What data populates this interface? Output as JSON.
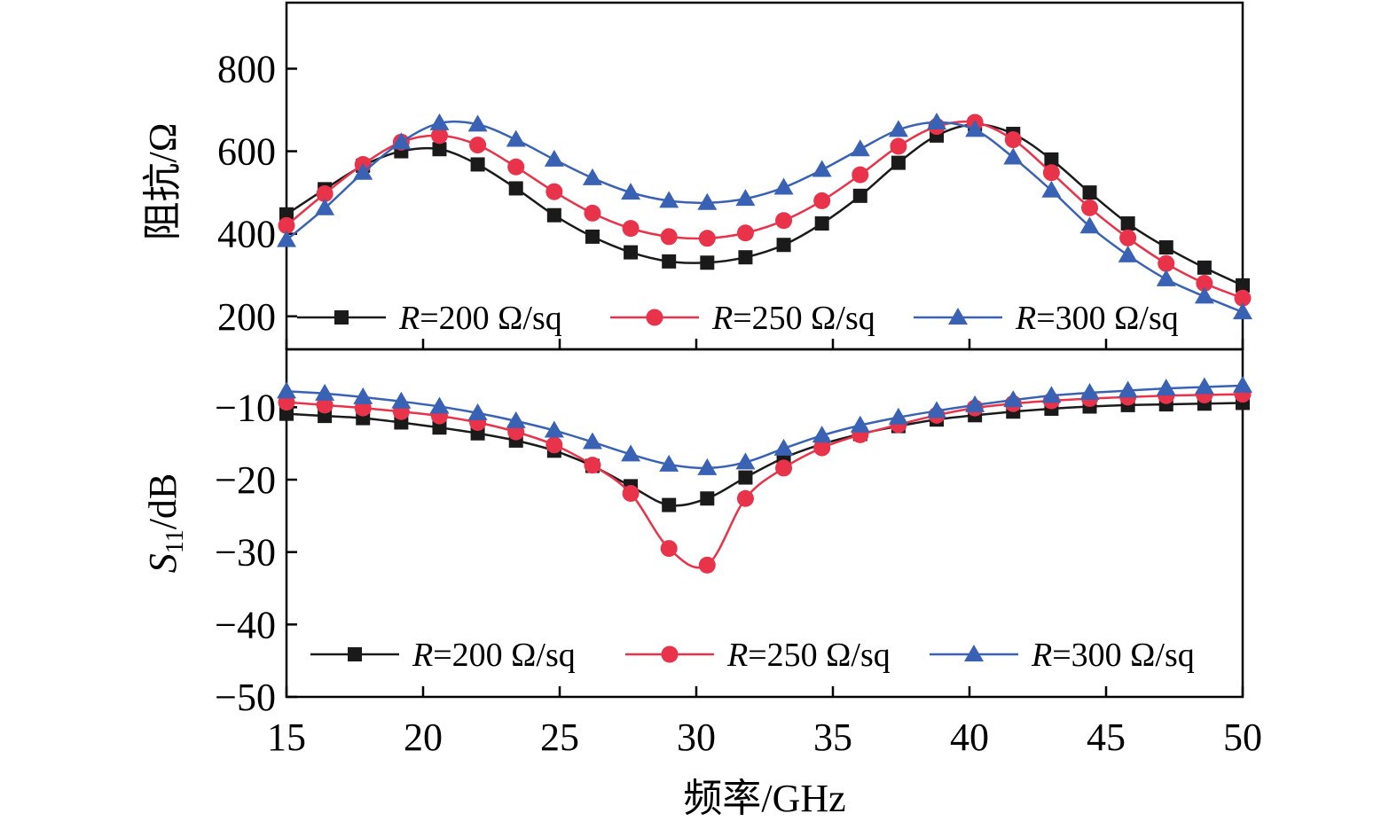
{
  "chart_data": [
    {
      "type": "line",
      "panel": "top",
      "xlabel": "频率/GHz",
      "ylabel": "阻抗/Ω",
      "xlim": [
        15,
        50
      ],
      "ylim": [
        120,
        960
      ],
      "x_ticks": [
        "15",
        "20",
        "25",
        "30",
        "35",
        "40",
        "45",
        "50"
      ],
      "y_ticks": [
        "200",
        "400",
        "600",
        "800"
      ],
      "legend_position": "bottom",
      "x": [
        15,
        16.4,
        17.8,
        19.2,
        20.6,
        22,
        23.4,
        24.8,
        26.2,
        27.6,
        29,
        30.4,
        31.8,
        33.2,
        34.6,
        36,
        37.4,
        38.8,
        40.2,
        41.6,
        43,
        44.4,
        45.8,
        47.2,
        48.6,
        50
      ],
      "series": [
        {
          "name": "R=200 Ω/sq",
          "legend_italic": "R",
          "legend_rest": "=200 Ω/sq",
          "color": "#1a1a1a",
          "marker": "square",
          "values": [
            447,
            508,
            565,
            600,
            605,
            568,
            510,
            445,
            393,
            355,
            333,
            330,
            343,
            373,
            425,
            492,
            572,
            638,
            665,
            642,
            580,
            500,
            425,
            367,
            318,
            275
          ]
        },
        {
          "name": "R=250 Ω/sq",
          "legend_italic": "R",
          "legend_rest": "=250 Ω/sq",
          "color": "#e8334a",
          "marker": "circle",
          "values": [
            420,
            497,
            568,
            622,
            638,
            615,
            562,
            502,
            450,
            413,
            393,
            389,
            402,
            432,
            480,
            543,
            612,
            660,
            670,
            628,
            548,
            463,
            390,
            328,
            280,
            244
          ]
        },
        {
          "name": "R=300 Ω/sq",
          "legend_italic": "R",
          "legend_rest": "=300 Ω/sq",
          "color": "#3a62b4",
          "marker": "triangle",
          "values": [
            385,
            462,
            548,
            622,
            668,
            665,
            628,
            580,
            535,
            500,
            480,
            475,
            485,
            512,
            555,
            605,
            652,
            670,
            652,
            585,
            505,
            418,
            348,
            290,
            248,
            210
          ]
        }
      ]
    },
    {
      "type": "line",
      "panel": "bottom",
      "xlabel": "频率/GHz",
      "ylabel_main": "S",
      "ylabel_sub": "11",
      "ylabel_tail": "/dB",
      "xlim": [
        15,
        50
      ],
      "ylim": [
        -50,
        -2
      ],
      "x_ticks": [
        "15",
        "20",
        "25",
        "30",
        "35",
        "40",
        "45",
        "50"
      ],
      "y_ticks": [
        "−10",
        "−20",
        "−30",
        "−40",
        "−50"
      ],
      "legend_position": "bottom",
      "x": [
        15,
        16.4,
        17.8,
        19.2,
        20.6,
        22,
        23.4,
        24.8,
        26.2,
        27.6,
        29,
        30.4,
        31.8,
        33.2,
        34.6,
        36,
        37.4,
        38.8,
        40.2,
        41.6,
        43,
        44.4,
        45.8,
        47.2,
        48.6,
        50
      ],
      "series": [
        {
          "name": "R=200 Ω/sq",
          "legend_italic": "R",
          "legend_rest": "=200 Ω/sq",
          "color": "#1a1a1a",
          "marker": "square",
          "values": [
            -10.9,
            -11.2,
            -11.5,
            -12.1,
            -12.8,
            -13.6,
            -14.6,
            -16.0,
            -18.1,
            -20.9,
            -23.5,
            -22.6,
            -19.7,
            -17.0,
            -15.1,
            -13.7,
            -12.6,
            -11.7,
            -11.1,
            -10.6,
            -10.2,
            -9.9,
            -9.7,
            -9.6,
            -9.5,
            -9.4
          ]
        },
        {
          "name": "R=250 Ω/sq",
          "legend_italic": "R",
          "legend_rest": "=250 Ω/sq",
          "color": "#e8334a",
          "marker": "circle",
          "values": [
            -9.3,
            -9.7,
            -10.1,
            -10.6,
            -11.2,
            -12.1,
            -13.4,
            -15.2,
            -18.0,
            -21.9,
            -29.5,
            -31.8,
            -22.6,
            -18.4,
            -15.6,
            -13.8,
            -12.4,
            -11.1,
            -10.1,
            -9.5,
            -9.1,
            -8.8,
            -8.6,
            -8.4,
            -8.3,
            -8.2
          ]
        },
        {
          "name": "R=300 Ω/sq",
          "legend_italic": "R",
          "legend_rest": "=300 Ω/sq",
          "color": "#3a62b4",
          "marker": "triangle",
          "values": [
            -7.8,
            -8.1,
            -8.6,
            -9.2,
            -9.9,
            -10.8,
            -11.9,
            -13.2,
            -14.8,
            -16.5,
            -17.9,
            -18.4,
            -17.6,
            -15.7,
            -13.9,
            -12.5,
            -11.4,
            -10.5,
            -9.7,
            -9.0,
            -8.4,
            -8.0,
            -7.7,
            -7.4,
            -7.2,
            -7.0
          ]
        }
      ]
    }
  ]
}
